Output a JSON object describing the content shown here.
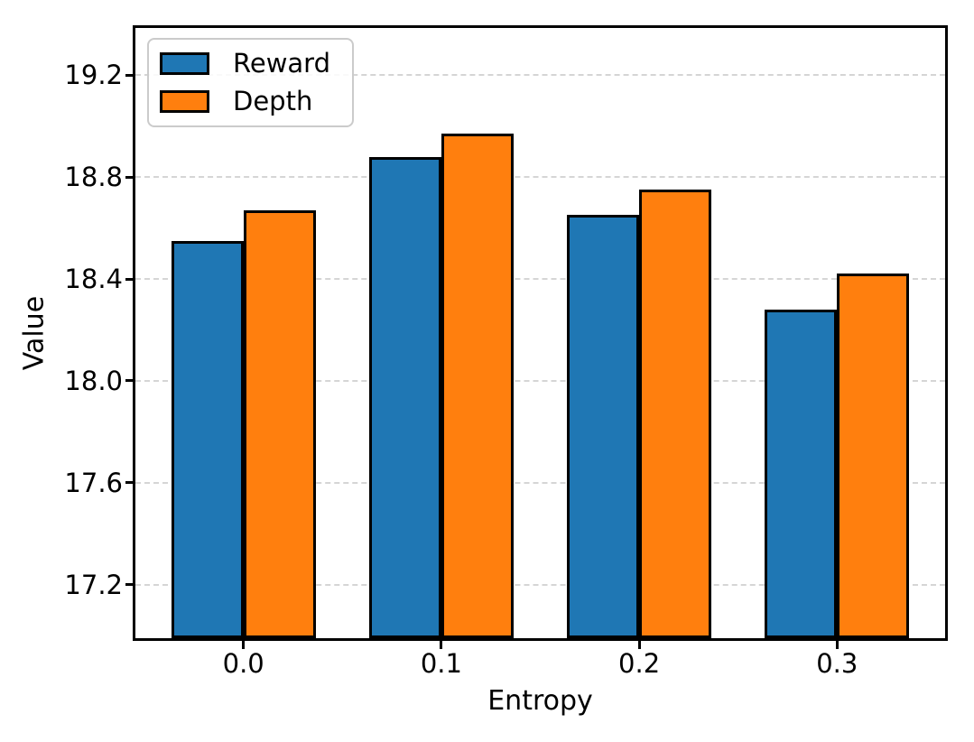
{
  "figure": {
    "background": "#ffffff"
  },
  "chart_data": {
    "type": "bar",
    "title": "",
    "xlabel": "Entropy",
    "ylabel": "Value",
    "categories": [
      "0.0",
      "0.1",
      "0.2",
      "0.3"
    ],
    "x_values": [
      0.0,
      0.1,
      0.2,
      0.3
    ],
    "series": [
      {
        "name": "Reward",
        "color": "#1f77b4",
        "values": [
          18.55,
          18.88,
          18.65,
          18.28
        ]
      },
      {
        "name": "Depth",
        "color": "#ff7f0e",
        "values": [
          18.67,
          18.97,
          18.75,
          18.42
        ]
      }
    ],
    "bar_edge_color": "#000000",
    "yticks": [
      17.2,
      17.6,
      18.0,
      18.4,
      18.8,
      19.2
    ],
    "ylim": [
      16.99,
      19.385
    ],
    "xlim": [
      -0.0546,
      0.3546
    ],
    "grid": {
      "axis": "y",
      "style": "dashed",
      "color": "#d5d5d5"
    },
    "legend": {
      "position": "upper-left",
      "entries": [
        "Reward",
        "Depth"
      ]
    },
    "axis_color": "#000000",
    "tick_label_color": "#000000"
  }
}
